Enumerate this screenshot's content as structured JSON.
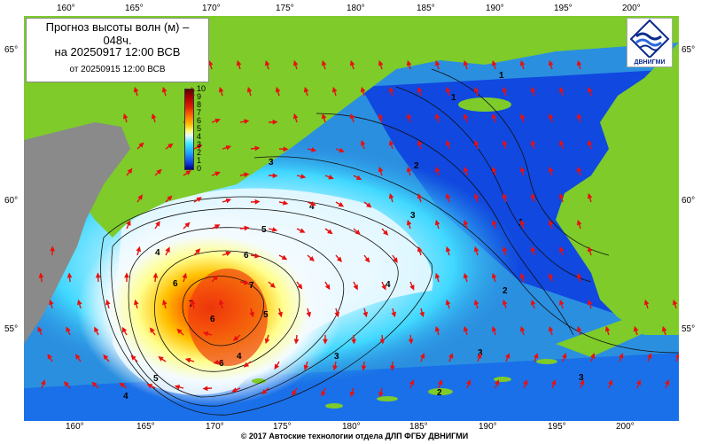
{
  "title": {
    "line1": "Прогноз высоты волн (м) –",
    "line1b": "048ч.",
    "line2": "на 20250917 12:00 ВСВ",
    "line3": "от 20250915 12:00 ВСВ"
  },
  "logo": {
    "text": "ДВНИГМИ",
    "icon": "wave-logo-icon"
  },
  "footer": "© 2017 Автоские технологии отдела ДЛП ФГБУ ДВНИГМИ",
  "colorbar": {
    "labels": [
      "10",
      "9",
      "8",
      "7",
      "6",
      "5",
      "4",
      "3",
      "2",
      "1",
      "0"
    ],
    "colors": [
      "#5a0000",
      "#b00000",
      "#e02000",
      "#ff7000",
      "#ffc000",
      "#ffff80",
      "#e8f8ff",
      "#40e8ff",
      "#20a0ff",
      "#1040e0",
      "#000080"
    ]
  },
  "axes": {
    "lon_top": [
      "160°",
      "165°",
      "170°",
      "175°",
      "180°",
      "185°",
      "190°",
      "195°",
      "200°"
    ],
    "lon_bottom": [
      "160°",
      "165°",
      "170°",
      "175°",
      "180°",
      "185°",
      "190°",
      "195°",
      "200°"
    ],
    "lat_left": [
      "65°",
      "60°",
      "55°"
    ],
    "lat_right": [
      "65°",
      "60°",
      "55°"
    ]
  },
  "contour_labels": [
    "1",
    "1",
    "2",
    "3",
    "3",
    "3",
    "4",
    "4",
    "4",
    "4",
    "4",
    "5",
    "5",
    "5",
    "6",
    "6",
    "6",
    "6",
    "7",
    "7",
    "3",
    "2",
    "3",
    "2",
    "1",
    "3",
    "1"
  ],
  "colors": {
    "land": "#7ecb2a",
    "ocean_deep": "#1050e0",
    "ocean_mid": "#2b8fe0",
    "arrow": "#e81010",
    "grey_land": "#8a8a8a"
  }
}
